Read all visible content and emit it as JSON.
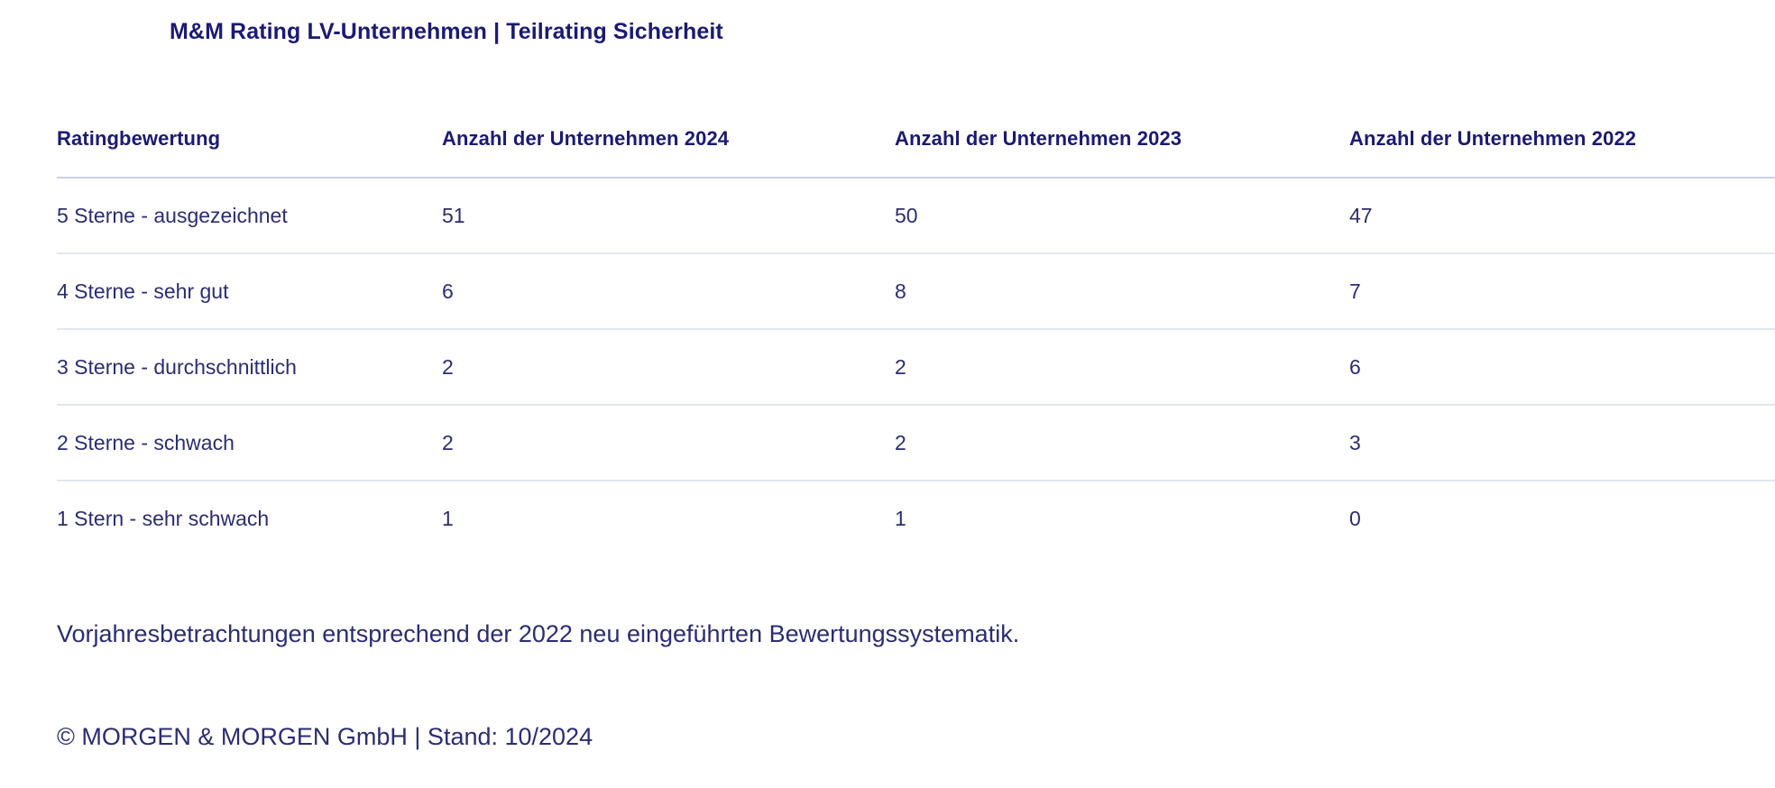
{
  "title": "M&M Rating LV-Unternehmen | Teilrating Sicherheit",
  "table": {
    "headers": [
      "Ratingbewertung",
      "Anzahl der Unternehmen 2024",
      "Anzahl der Unternehmen 2023",
      "Anzahl der Unternehmen 2022"
    ],
    "rows": [
      {
        "label": "5 Sterne - ausgezeichnet",
        "values": [
          "51",
          "50",
          "47"
        ]
      },
      {
        "label": "4 Sterne - sehr gut",
        "values": [
          "6",
          "8",
          "7"
        ]
      },
      {
        "label": "3 Sterne - durchschnittlich",
        "values": [
          "2",
          "2",
          "6"
        ]
      },
      {
        "label": "2 Sterne - schwach",
        "values": [
          "2",
          "2",
          "3"
        ]
      },
      {
        "label": "1 Stern - sehr schwach",
        "values": [
          "1",
          "1",
          "0"
        ]
      }
    ]
  },
  "note": "Vorjahresbetrachtungen entsprechend der 2022 neu eingeführten Bewertungssystematik.",
  "footer": "© MORGEN & MORGEN GmbH | Stand: 10/2024",
  "colors": {
    "heading_text": "#1b1a74",
    "body_text": "#2b2d72",
    "header_divider": "#ccd0dc",
    "row_divider": "#e3e6ef",
    "background": "#ffffff"
  },
  "chart_data": {
    "type": "table",
    "title": "M&M Rating LV-Unternehmen | Teilrating Sicherheit",
    "columns": [
      "Ratingbewertung",
      "Anzahl der Unternehmen 2024",
      "Anzahl der Unternehmen 2023",
      "Anzahl der Unternehmen 2022"
    ],
    "categories": [
      "5 Sterne - ausgezeichnet",
      "4 Sterne - sehr gut",
      "3 Sterne - durchschnittlich",
      "2 Sterne - schwach",
      "1 Stern - sehr schwach"
    ],
    "series": [
      {
        "name": "Anzahl der Unternehmen 2024",
        "values": [
          51,
          6,
          2,
          2,
          1
        ]
      },
      {
        "name": "Anzahl der Unternehmen 2023",
        "values": [
          50,
          8,
          2,
          2,
          1
        ]
      },
      {
        "name": "Anzahl der Unternehmen 2022",
        "values": [
          47,
          7,
          6,
          3,
          0
        ]
      }
    ],
    "annotations": [
      "Vorjahresbetrachtungen entsprechend der 2022 neu eingeführten Bewertungssystematik.",
      "© MORGEN & MORGEN GmbH | Stand: 10/2024"
    ]
  }
}
